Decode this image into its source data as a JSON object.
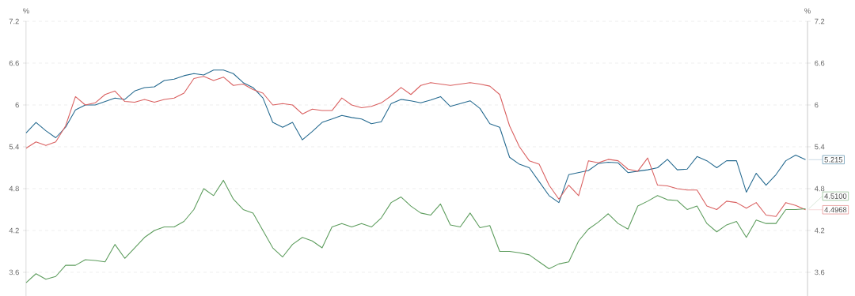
{
  "chart_data": {
    "type": "line",
    "ylabel": "%",
    "y2label": "%",
    "categories": [
      null,
      null,
      null,
      null,
      null,
      null,
      null,
      null,
      null,
      null,
      null,
      null,
      null,
      null,
      null,
      null,
      null,
      null,
      null,
      null,
      null,
      null,
      null,
      null,
      null,
      null,
      null,
      null,
      null,
      null,
      null,
      null,
      null,
      null,
      null,
      null,
      null,
      null,
      null,
      null,
      null,
      null,
      null,
      null,
      null,
      null,
      null,
      null,
      null,
      null,
      null,
      null,
      null,
      null,
      null,
      null,
      null,
      null,
      null,
      null,
      null,
      null,
      null,
      null,
      null,
      null,
      null,
      null,
      null,
      null,
      null,
      null,
      null,
      null,
      null,
      null,
      null,
      null,
      null,
      null
    ],
    "series": [
      {
        "color": "#24698f",
        "values": [
          5.6,
          5.75,
          5.63,
          5.53,
          5.68,
          5.93,
          6.0,
          6.0,
          6.05,
          6.1,
          6.08,
          6.2,
          6.25,
          6.26,
          6.35,
          6.37,
          6.42,
          6.45,
          6.43,
          6.5,
          6.5,
          6.45,
          6.32,
          6.25,
          6.1,
          5.75,
          5.68,
          5.75,
          5.5,
          5.62,
          5.75,
          5.8,
          5.85,
          5.82,
          5.8,
          5.73,
          5.76,
          6.02,
          6.08,
          6.06,
          6.03,
          6.07,
          6.12,
          5.98,
          6.02,
          6.06,
          5.95,
          5.73,
          5.68,
          5.25,
          5.15,
          5.1,
          4.9,
          4.7,
          4.6,
          5.0,
          5.03,
          5.06,
          5.16,
          5.18,
          5.17,
          5.03,
          5.05,
          5.07,
          5.1,
          5.22,
          5.07,
          5.08,
          5.26,
          5.2,
          5.1,
          5.2,
          5.2,
          4.75,
          5.02,
          4.85,
          5.0,
          5.2,
          5.28,
          5.215
        ],
        "value_labels": [
          null,
          null,
          null,
          null,
          null,
          null,
          null,
          null,
          null,
          null,
          null,
          null,
          null,
          null,
          null,
          null,
          null,
          null,
          null,
          null,
          null,
          null,
          null,
          null,
          null,
          null,
          null,
          null,
          null,
          null,
          null,
          null,
          null,
          null,
          null,
          null,
          null,
          null,
          null,
          null,
          null,
          null,
          null,
          null,
          null,
          null,
          null,
          null,
          null,
          null,
          null,
          null,
          null,
          null,
          null,
          null,
          null,
          null,
          null,
          null,
          null,
          null,
          null,
          null,
          null,
          null,
          null,
          null,
          null,
          null,
          null,
          null,
          null,
          null,
          null,
          null,
          null,
          null,
          null,
          "5.215"
        ]
      },
      {
        "color": "#d95f5f",
        "values": [
          5.38,
          5.47,
          5.42,
          5.47,
          5.7,
          6.12,
          6.0,
          6.03,
          6.15,
          6.2,
          6.05,
          6.04,
          6.08,
          6.04,
          6.08,
          6.1,
          6.17,
          6.38,
          6.41,
          6.35,
          6.4,
          6.28,
          6.3,
          6.22,
          6.17,
          6.0,
          6.02,
          6.0,
          5.87,
          5.94,
          5.92,
          5.92,
          6.1,
          6.0,
          5.96,
          5.98,
          6.03,
          6.13,
          6.25,
          6.15,
          6.28,
          6.32,
          6.3,
          6.28,
          6.3,
          6.32,
          6.3,
          6.27,
          6.15,
          5.7,
          5.4,
          5.2,
          5.15,
          4.85,
          4.65,
          4.85,
          4.7,
          5.2,
          5.17,
          5.22,
          5.2,
          5.08,
          5.05,
          5.24,
          4.85,
          4.84,
          4.8,
          4.78,
          4.78,
          4.55,
          4.5,
          4.62,
          4.6,
          4.52,
          4.6,
          4.42,
          4.4,
          4.6,
          4.56,
          4.4968
        ],
        "value_labels": [
          null,
          null,
          null,
          null,
          null,
          null,
          null,
          null,
          null,
          null,
          null,
          null,
          null,
          null,
          null,
          null,
          null,
          null,
          null,
          null,
          null,
          null,
          null,
          null,
          null,
          null,
          null,
          null,
          null,
          null,
          null,
          null,
          null,
          null,
          null,
          null,
          null,
          null,
          null,
          null,
          null,
          null,
          null,
          null,
          null,
          null,
          null,
          null,
          null,
          null,
          null,
          null,
          null,
          null,
          null,
          null,
          null,
          null,
          null,
          null,
          null,
          null,
          null,
          null,
          null,
          null,
          null,
          null,
          null,
          null,
          null,
          null,
          null,
          null,
          null,
          null,
          null,
          null,
          null,
          "4.4968"
        ]
      },
      {
        "color": "#5c9c5c",
        "values": [
          3.45,
          3.58,
          3.5,
          3.54,
          3.7,
          3.7,
          3.78,
          3.77,
          3.75,
          4.0,
          3.8,
          3.95,
          4.1,
          4.2,
          4.25,
          4.25,
          4.33,
          4.5,
          4.8,
          4.7,
          4.92,
          4.65,
          4.5,
          4.45,
          4.2,
          3.95,
          3.82,
          4.0,
          4.1,
          4.05,
          3.95,
          4.25,
          4.3,
          4.25,
          4.3,
          4.25,
          4.38,
          4.6,
          4.68,
          4.55,
          4.45,
          4.42,
          4.58,
          4.28,
          4.25,
          4.45,
          4.24,
          4.27,
          3.9,
          3.9,
          3.88,
          3.85,
          3.75,
          3.65,
          3.72,
          3.75,
          4.05,
          4.22,
          4.32,
          4.44,
          4.3,
          4.22,
          4.55,
          4.62,
          4.7,
          4.64,
          4.63,
          4.5,
          4.55,
          4.3,
          4.18,
          4.28,
          4.33,
          4.1,
          4.35,
          4.3,
          4.3,
          4.5,
          4.5,
          4.51
        ],
        "value_labels": [
          null,
          null,
          null,
          null,
          null,
          null,
          null,
          null,
          null,
          null,
          null,
          null,
          null,
          null,
          null,
          null,
          null,
          null,
          null,
          null,
          null,
          null,
          null,
          null,
          null,
          null,
          null,
          null,
          null,
          null,
          null,
          null,
          null,
          null,
          null,
          null,
          null,
          null,
          null,
          null,
          null,
          null,
          null,
          null,
          null,
          null,
          null,
          null,
          null,
          null,
          null,
          null,
          null,
          null,
          null,
          null,
          null,
          null,
          null,
          null,
          null,
          null,
          null,
          null,
          null,
          null,
          null,
          null,
          null,
          null,
          null,
          null,
          null,
          null,
          null,
          null,
          null,
          null,
          null,
          "4.5100"
        ]
      }
    ],
    "ylim": [
      3.26,
      7.2
    ],
    "yticks": [
      3.6,
      4.2,
      4.8,
      5.4,
      6,
      6.6,
      7.2
    ],
    "y2lim": [
      3.26,
      7.2
    ],
    "y2ticks": [
      3.6,
      4.2,
      4.8,
      5.4,
      6,
      6.6,
      7.2
    ],
    "grid": "y",
    "tick_labels": "y",
    "marker": "none",
    "line_style": "solid"
  }
}
